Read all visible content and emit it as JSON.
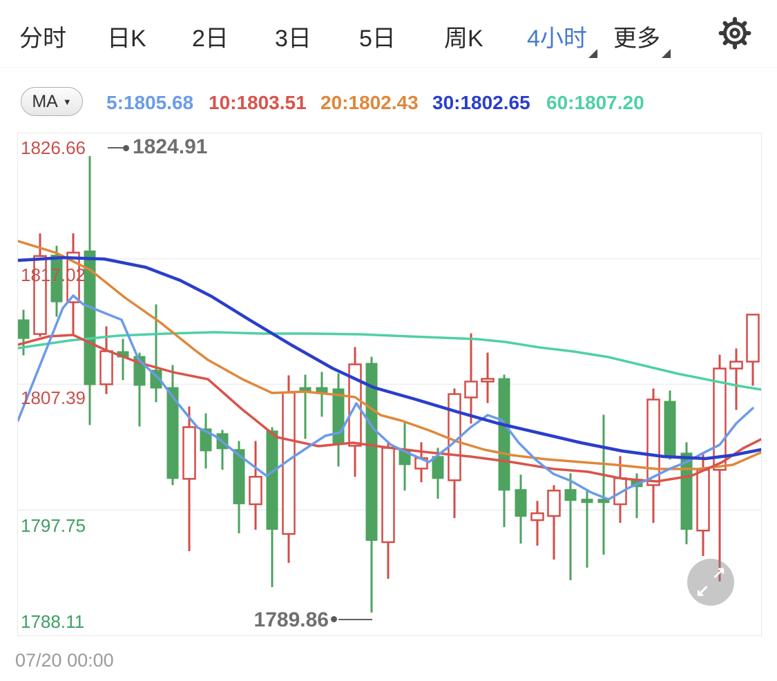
{
  "header": {
    "tabs": [
      {
        "label": "分时",
        "active": false,
        "dropdown": false
      },
      {
        "label": "日K",
        "active": false,
        "dropdown": false
      },
      {
        "label": "2日",
        "active": false,
        "dropdown": false
      },
      {
        "label": "3日",
        "active": false,
        "dropdown": false
      },
      {
        "label": "5日",
        "active": false,
        "dropdown": false
      },
      {
        "label": "周K",
        "active": false,
        "dropdown": false
      },
      {
        "label": "4小时",
        "active": true,
        "dropdown": true
      },
      {
        "label": "更多",
        "active": false,
        "dropdown": true
      }
    ],
    "active_color": "#4679D2",
    "settings_icon": "gear"
  },
  "ma_bar": {
    "selector_label": "MA",
    "caret_icon": "▼",
    "legend": [
      {
        "label": "5:1805.68",
        "color": "#6B9BE8"
      },
      {
        "label": "10:1803.51",
        "color": "#D9534B"
      },
      {
        "label": "20:1802.43",
        "color": "#E0873A"
      },
      {
        "label": "30:1802.65",
        "color": "#2A3ECC"
      },
      {
        "label": "60:1807.20",
        "color": "#4ED0A5"
      }
    ]
  },
  "chart": {
    "y_axis_labels": [
      {
        "text": "1826.66",
        "color": "#C8504D"
      },
      {
        "text": "1817.02",
        "color": "#C8504D"
      },
      {
        "text": "1807.39",
        "color": "#C8504D"
      },
      {
        "text": "1797.75",
        "color": "#3F9E63"
      },
      {
        "text": "1788.11",
        "color": "#3F9E63"
      }
    ],
    "high_label": "1824.91",
    "low_label": "1789.86",
    "expand_icon_ne": "↗",
    "expand_icon_sw": "↙"
  },
  "footer": {
    "timestamp": "07/20 00:00"
  },
  "chart_data": {
    "type": "candlestick",
    "title": "",
    "period": "4小时",
    "ylim": [
      1788.11,
      1826.66
    ],
    "grid": true,
    "y_gridline_prices": [
      1826.66,
      1817.02,
      1807.39,
      1797.75,
      1788.11
    ],
    "price_range": {
      "top": 1826.66,
      "bottom": 1788.11
    },
    "x_last_tick": "07/20 00:00",
    "high_annotation": {
      "value": 1824.91,
      "candle_index": 4
    },
    "low_annotation": {
      "value": 1789.86,
      "candle_index": 21
    },
    "colors": {
      "up": "#D24D48",
      "down": "#4DA35F"
    },
    "candles_format": [
      "open",
      "high",
      "low",
      "close"
    ],
    "candles": [
      [
        1812.37,
        1813.11,
        1809.61,
        1810.88
      ],
      [
        1811.25,
        1818.98,
        1811.04,
        1817.24
      ],
      [
        1817.34,
        1818.03,
        1812.58,
        1813.69
      ],
      [
        1813.69,
        1818.98,
        1811.25,
        1817.5
      ],
      [
        1817.66,
        1824.91,
        1804.26,
        1807.33
      ],
      [
        1807.39,
        1811.84,
        1806.64,
        1809.93
      ],
      [
        1809.93,
        1810.88,
        1807.71,
        1809.45
      ],
      [
        1809.56,
        1809.82,
        1804.15,
        1807.28
      ],
      [
        1808.5,
        1813.53,
        1806.01,
        1807.07
      ],
      [
        1807.17,
        1808.87,
        1799.65,
        1800.13
      ],
      [
        1800.13,
        1805.69,
        1794.58,
        1804.1
      ],
      [
        1804.0,
        1805.16,
        1800.92,
        1802.25
      ],
      [
        1803.63,
        1803.89,
        1800.82,
        1802.41
      ],
      [
        1802.41,
        1803.04,
        1795.95,
        1798.18
      ],
      [
        1798.18,
        1803.04,
        1796.22,
        1800.29
      ],
      [
        1803.84,
        1804.1,
        1791.82,
        1796.22
      ],
      [
        1795.9,
        1808.08,
        1793.68,
        1806.75
      ],
      [
        1807.17,
        1808.13,
        1803.2,
        1806.75
      ],
      [
        1807.17,
        1808.34,
        1804.9,
        1806.64
      ],
      [
        1807.07,
        1808.23,
        1801.08,
        1802.83
      ],
      [
        1802.67,
        1810.25,
        1800.29,
        1808.92
      ],
      [
        1809.03,
        1809.5,
        1789.86,
        1795.37
      ],
      [
        1795.27,
        1802.94,
        1792.46,
        1802.51
      ],
      [
        1802.41,
        1804.42,
        1799.23,
        1801.19
      ],
      [
        1800.92,
        1802.94,
        1799.87,
        1801.72
      ],
      [
        1801.88,
        1802.51,
        1798.6,
        1800.13
      ],
      [
        1800.02,
        1807.07,
        1797.12,
        1806.64
      ],
      [
        1806.38,
        1811.3,
        1804.37,
        1807.6
      ],
      [
        1807.6,
        1809.82,
        1805.95,
        1807.81
      ],
      [
        1807.86,
        1808.13,
        1796.43,
        1799.23
      ],
      [
        1799.34,
        1800.45,
        1795.16,
        1797.22
      ],
      [
        1796.96,
        1798.44,
        1795.0,
        1797.49
      ],
      [
        1797.28,
        1799.65,
        1793.94,
        1799.23
      ],
      [
        1799.34,
        1800.55,
        1792.35,
        1798.44
      ],
      [
        1798.6,
        1799.34,
        1793.31,
        1798.28
      ],
      [
        1798.6,
        1805.05,
        1794.31,
        1798.28
      ],
      [
        1798.18,
        1801.88,
        1796.75,
        1800.18
      ],
      [
        1800.13,
        1800.55,
        1797.12,
        1799.5
      ],
      [
        1799.65,
        1807.07,
        1796.75,
        1806.22
      ],
      [
        1806.11,
        1806.91,
        1801.61,
        1801.72
      ],
      [
        1802.14,
        1802.94,
        1795.11,
        1796.22
      ],
      [
        1796.16,
        1802.04,
        1794.21,
        1800.82
      ],
      [
        1800.82,
        1809.66,
        1792.25,
        1808.6
      ],
      [
        1808.6,
        1810.14,
        1805.42,
        1809.13
      ],
      [
        1809.13,
        1812.74,
        1807.28,
        1812.74
      ]
    ],
    "ma_series": [
      {
        "name": "MA60",
        "value": 1807.2,
        "color": "#4ED0A5",
        "width": 3.5,
        "points": [
          [
            0,
            311
          ],
          [
            75,
            300
          ],
          [
            145,
            293
          ],
          [
            215,
            290
          ],
          [
            285,
            288
          ],
          [
            355,
            290
          ],
          [
            425,
            290
          ],
          [
            495,
            291
          ],
          [
            565,
            294
          ],
          [
            615,
            296
          ],
          [
            665,
            298
          ],
          [
            705,
            302
          ],
          [
            755,
            310
          ],
          [
            805,
            316
          ],
          [
            855,
            324
          ],
          [
            905,
            336
          ],
          [
            955,
            348
          ],
          [
            1005,
            358
          ],
          [
            1045,
            366
          ],
          [
            1076,
            371
          ]
        ]
      },
      {
        "name": "MA20",
        "value": 1802.43,
        "color": "#E0873A",
        "width": 3.5,
        "points": [
          [
            0,
            156
          ],
          [
            55,
            173
          ],
          [
            105,
            198
          ],
          [
            155,
            238
          ],
          [
            205,
            273
          ],
          [
            255,
            313
          ],
          [
            275,
            328
          ],
          [
            325,
            356
          ],
          [
            368,
            376
          ],
          [
            415,
            374
          ],
          [
            465,
            379
          ],
          [
            488,
            382
          ],
          [
            525,
            408
          ],
          [
            555,
            416
          ],
          [
            595,
            430
          ],
          [
            635,
            446
          ],
          [
            675,
            458
          ],
          [
            715,
            466
          ],
          [
            765,
            472
          ],
          [
            815,
            476
          ],
          [
            865,
            480
          ],
          [
            925,
            486
          ],
          [
            985,
            486
          ],
          [
            1035,
            480
          ],
          [
            1076,
            462
          ]
        ]
      },
      {
        "name": "MA10",
        "value": 1803.51,
        "color": "#D9534B",
        "width": 3.5,
        "points": [
          [
            0,
            306
          ],
          [
            45,
            294
          ],
          [
            80,
            292
          ],
          [
            125,
            313
          ],
          [
            175,
            332
          ],
          [
            225,
            346
          ],
          [
            275,
            356
          ],
          [
            325,
            400
          ],
          [
            375,
            440
          ],
          [
            435,
            453
          ],
          [
            485,
            448
          ],
          [
            535,
            455
          ],
          [
            595,
            462
          ],
          [
            655,
            468
          ],
          [
            715,
            476
          ],
          [
            775,
            486
          ],
          [
            825,
            490
          ],
          [
            875,
            500
          ],
          [
            925,
            504
          ],
          [
            975,
            496
          ],
          [
            1020,
            476
          ],
          [
            1050,
            456
          ],
          [
            1076,
            443
          ]
        ]
      },
      {
        "name": "MA5",
        "value": 1805.68,
        "color": "#6B9BE8",
        "width": 3.5,
        "points": [
          [
            0,
            416
          ],
          [
            35,
            328
          ],
          [
            65,
            253
          ],
          [
            80,
            235
          ],
          [
            95,
            248
          ],
          [
            125,
            260
          ],
          [
            150,
            270
          ],
          [
            175,
            328
          ],
          [
            205,
            356
          ],
          [
            233,
            393
          ],
          [
            260,
            426
          ],
          [
            285,
            438
          ],
          [
            320,
            466
          ],
          [
            360,
            496
          ],
          [
            395,
            471
          ],
          [
            425,
            451
          ],
          [
            445,
            438
          ],
          [
            467,
            433
          ],
          [
            490,
            391
          ],
          [
            515,
            428
          ],
          [
            540,
            451
          ],
          [
            565,
            463
          ],
          [
            595,
            476
          ],
          [
            625,
            453
          ],
          [
            655,
            426
          ],
          [
            680,
            408
          ],
          [
            700,
            415
          ],
          [
            725,
            448
          ],
          [
            750,
            473
          ],
          [
            775,
            493
          ],
          [
            800,
            503
          ],
          [
            830,
            520
          ],
          [
            855,
            530
          ],
          [
            885,
            513
          ],
          [
            915,
            500
          ],
          [
            943,
            486
          ],
          [
            968,
            476
          ],
          [
            992,
            463
          ],
          [
            1016,
            451
          ],
          [
            1040,
            420
          ],
          [
            1064,
            398
          ]
        ]
      },
      {
        "name": "MA30",
        "value": 1802.65,
        "color": "#2A3ECC",
        "width": 4.5,
        "points": [
          [
            0,
            184
          ],
          [
            65,
            180
          ],
          [
            125,
            182
          ],
          [
            185,
            194
          ],
          [
            235,
            213
          ],
          [
            280,
            236
          ],
          [
            335,
            270
          ],
          [
            395,
            306
          ],
          [
            455,
            340
          ],
          [
            515,
            368
          ],
          [
            575,
            385
          ],
          [
            635,
            403
          ],
          [
            695,
            420
          ],
          [
            755,
            434
          ],
          [
            815,
            448
          ],
          [
            875,
            460
          ],
          [
            935,
            468
          ],
          [
            995,
            471
          ],
          [
            1035,
            466
          ],
          [
            1076,
            458
          ]
        ]
      }
    ]
  }
}
